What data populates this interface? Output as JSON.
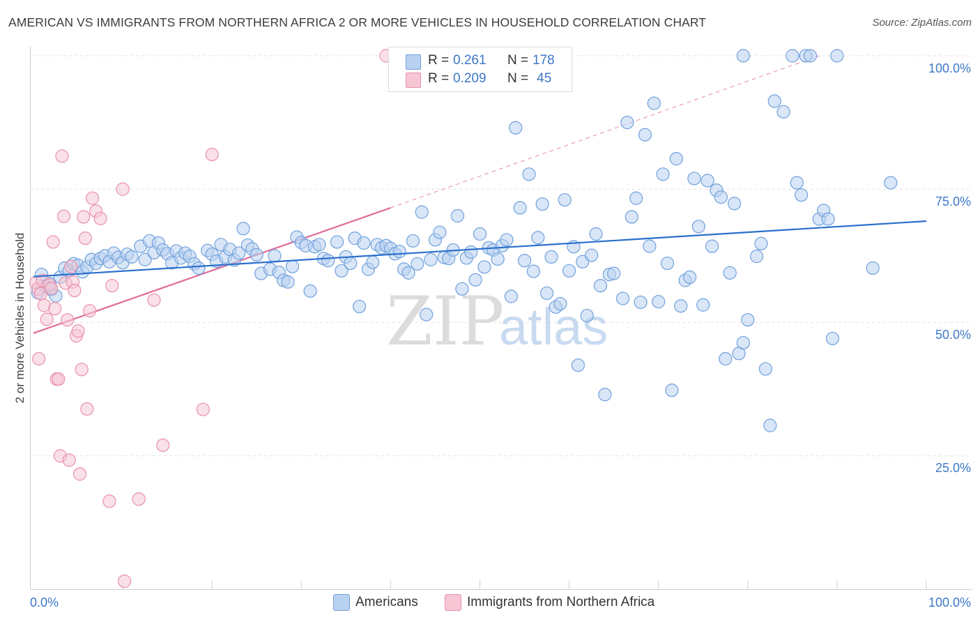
{
  "title": "AMERICAN VS IMMIGRANTS FROM NORTHERN AFRICA 2 OR MORE VEHICLES IN HOUSEHOLD CORRELATION CHART",
  "source": "Source: ZipAtlas.com",
  "watermark": {
    "zip": "ZIP",
    "atlas": "atlas"
  },
  "legend": {
    "r_label": "R =",
    "n_label": "N =",
    "americans": {
      "r": "0.261",
      "n": "178",
      "color": "#6fa0dc"
    },
    "immigrants": {
      "r": "0.209",
      "n": "45",
      "color": "#e890ac"
    }
  },
  "bottom_legend": {
    "americans": "Americans",
    "immigrants": "Immigrants from Northern Africa"
  },
  "colors": {
    "blue_fill": "#b9d1f0",
    "blue_stroke": "#6fa0dc",
    "blue_line": "#2a6fcc",
    "pink_fill": "#f6c6d5",
    "pink_stroke": "#e890ac",
    "pink_line": "#e06c98",
    "grid": "#e2e2e2",
    "axis_text": "#3c78c8"
  },
  "chart_data": {
    "type": "scatter",
    "title": "AMERICAN VS IMMIGRANTS FROM NORTHERN AFRICA 2 OR MORE VEHICLES IN HOUSEHOLD CORRELATION CHART",
    "xlabel": "",
    "ylabel": "2 or more Vehicles in Household",
    "xlim": [
      0,
      100
    ],
    "ylim": [
      0,
      100
    ],
    "x_tick_labels": [
      "0.0%",
      "100.0%"
    ],
    "y_tick_labels": [
      "25.0%",
      "50.0%",
      "75.0%",
      "100.0%"
    ],
    "y_ticks": [
      25,
      50,
      75,
      100
    ],
    "x_minor_ticks": [
      10,
      20,
      30,
      40,
      50,
      60,
      70,
      80,
      90,
      100
    ],
    "series": [
      {
        "name": "Americans",
        "r": 0.261,
        "n": 178,
        "trend": {
          "x0": 0,
          "y0": 58.6,
          "x1": 100,
          "y1": 69.0
        },
        "points": [
          [
            0.5,
            55.6
          ],
          [
            0.9,
            59.0
          ],
          [
            1.4,
            56.8
          ],
          [
            1.8,
            57.3
          ],
          [
            2.0,
            56.2
          ],
          [
            2.5,
            55.0
          ],
          [
            3.0,
            58.5
          ],
          [
            3.5,
            60.2
          ],
          [
            4.0,
            59.7
          ],
          [
            4.5,
            61.0
          ],
          [
            5.0,
            60.7
          ],
          [
            5.5,
            59.5
          ],
          [
            6.0,
            60.4
          ],
          [
            6.5,
            61.8
          ],
          [
            7.0,
            61.1
          ],
          [
            7.5,
            62.0
          ],
          [
            8.0,
            62.5
          ],
          [
            8.5,
            61.4
          ],
          [
            9.0,
            63.0
          ],
          [
            9.5,
            62.2
          ],
          [
            10.0,
            61.2
          ],
          [
            10.5,
            62.8
          ],
          [
            11.0,
            62.3
          ],
          [
            12.0,
            64.3
          ],
          [
            12.5,
            61.8
          ],
          [
            13.0,
            65.3
          ],
          [
            13.5,
            63.1
          ],
          [
            14.0,
            64.9
          ],
          [
            14.5,
            63.6
          ],
          [
            15.0,
            62.9
          ],
          [
            15.5,
            61.2
          ],
          [
            16.0,
            63.4
          ],
          [
            16.5,
            62.1
          ],
          [
            17.0,
            63.0
          ],
          [
            17.5,
            62.4
          ],
          [
            18.0,
            61.0
          ],
          [
            18.5,
            60.2
          ],
          [
            19.5,
            63.5
          ],
          [
            20.0,
            62.8
          ],
          [
            20.5,
            61.5
          ],
          [
            21.0,
            64.6
          ],
          [
            21.5,
            62.3
          ],
          [
            22.0,
            63.7
          ],
          [
            22.5,
            61.7
          ],
          [
            23.0,
            63.0
          ],
          [
            23.5,
            67.6
          ],
          [
            24.0,
            64.5
          ],
          [
            24.5,
            63.8
          ],
          [
            25.0,
            62.7
          ],
          [
            25.5,
            59.2
          ],
          [
            26.5,
            60.0
          ],
          [
            27.0,
            62.5
          ],
          [
            27.5,
            59.4
          ],
          [
            28.0,
            57.9
          ],
          [
            28.5,
            57.6
          ],
          [
            29.0,
            60.5
          ],
          [
            29.5,
            66.0
          ],
          [
            30.0,
            65.0
          ],
          [
            30.5,
            64.4
          ],
          [
            31.0,
            55.9
          ],
          [
            31.5,
            64.2
          ],
          [
            32.0,
            64.6
          ],
          [
            32.5,
            62.0
          ],
          [
            33.0,
            61.6
          ],
          [
            34.0,
            65.1
          ],
          [
            34.5,
            59.7
          ],
          [
            35.0,
            62.3
          ],
          [
            35.5,
            61.1
          ],
          [
            36.0,
            65.8
          ],
          [
            36.5,
            53.0
          ],
          [
            37.0,
            64.9
          ],
          [
            37.5,
            60.0
          ],
          [
            38.0,
            61.3
          ],
          [
            38.5,
            64.6
          ],
          [
            39.0,
            64.0
          ],
          [
            39.5,
            64.4
          ],
          [
            40.0,
            63.9
          ],
          [
            40.5,
            62.9
          ],
          [
            41.0,
            63.3
          ],
          [
            41.5,
            60.0
          ],
          [
            42.0,
            59.3
          ],
          [
            42.5,
            65.3
          ],
          [
            43.0,
            61.0
          ],
          [
            43.5,
            70.7
          ],
          [
            44.0,
            51.5
          ],
          [
            44.5,
            61.8
          ],
          [
            45.0,
            65.5
          ],
          [
            45.5,
            66.9
          ],
          [
            46.0,
            62.2
          ],
          [
            46.5,
            62.0
          ],
          [
            47.0,
            63.6
          ],
          [
            47.5,
            70.0
          ],
          [
            48.0,
            56.3
          ],
          [
            48.5,
            62.1
          ],
          [
            49.0,
            63.2
          ],
          [
            49.5,
            58.0
          ],
          [
            50.0,
            66.6
          ],
          [
            50.5,
            60.4
          ],
          [
            51.0,
            64.0
          ],
          [
            51.5,
            63.6
          ],
          [
            52.0,
            61.9
          ],
          [
            52.5,
            64.4
          ],
          [
            53.0,
            65.5
          ],
          [
            53.5,
            54.9
          ],
          [
            54.0,
            86.5
          ],
          [
            54.5,
            71.5
          ],
          [
            55.0,
            61.6
          ],
          [
            55.5,
            77.8
          ],
          [
            56.0,
            59.6
          ],
          [
            56.5,
            65.9
          ],
          [
            57.0,
            72.2
          ],
          [
            57.5,
            55.5
          ],
          [
            58.0,
            62.3
          ],
          [
            58.5,
            52.9
          ],
          [
            59.0,
            53.5
          ],
          [
            59.5,
            73.0
          ],
          [
            60.0,
            59.7
          ],
          [
            60.5,
            64.2
          ],
          [
            61.0,
            42.0
          ],
          [
            61.5,
            61.4
          ],
          [
            62.0,
            51.3
          ],
          [
            62.5,
            62.6
          ],
          [
            63.0,
            66.6
          ],
          [
            63.5,
            56.9
          ],
          [
            64.0,
            36.5
          ],
          [
            64.5,
            59.0
          ],
          [
            65.0,
            59.2
          ],
          [
            66.0,
            54.5
          ],
          [
            66.5,
            87.5
          ],
          [
            67.0,
            69.8
          ],
          [
            67.5,
            73.3
          ],
          [
            68.0,
            53.8
          ],
          [
            68.5,
            85.2
          ],
          [
            69.0,
            64.3
          ],
          [
            69.5,
            91.1
          ],
          [
            70.0,
            53.9
          ],
          [
            70.5,
            77.8
          ],
          [
            71.0,
            61.1
          ],
          [
            71.5,
            37.3
          ],
          [
            72.0,
            80.7
          ],
          [
            72.5,
            53.1
          ],
          [
            73.0,
            57.9
          ],
          [
            73.5,
            58.5
          ],
          [
            74.0,
            77.0
          ],
          [
            74.5,
            68.0
          ],
          [
            75.0,
            53.3
          ],
          [
            75.5,
            76.6
          ],
          [
            76.0,
            64.3
          ],
          [
            76.5,
            74.8
          ],
          [
            77.0,
            73.5
          ],
          [
            77.5,
            43.2
          ],
          [
            78.0,
            59.3
          ],
          [
            78.5,
            72.3
          ],
          [
            79.0,
            44.2
          ],
          [
            79.5,
            46.2
          ],
          [
            80.0,
            50.5
          ],
          [
            81.0,
            62.4
          ],
          [
            81.5,
            64.8
          ],
          [
            82.0,
            41.3
          ],
          [
            82.5,
            30.7
          ],
          [
            83.0,
            91.5
          ],
          [
            84.0,
            89.5
          ],
          [
            85.0,
            100.0
          ],
          [
            85.5,
            76.2
          ],
          [
            86.0,
            73.9
          ],
          [
            86.5,
            100.0
          ],
          [
            87.0,
            100.0
          ],
          [
            88.0,
            69.4
          ],
          [
            88.5,
            71.0
          ],
          [
            89.0,
            69.4
          ],
          [
            89.5,
            47.0
          ],
          [
            90.0,
            100.0
          ],
          [
            94.0,
            60.2
          ],
          [
            96.0,
            76.2
          ],
          [
            79.5,
            100.0
          ]
        ]
      },
      {
        "name": "Immigrants from Northern Africa",
        "r": 0.209,
        "n": 45,
        "trend": {
          "x0": 0,
          "y0": 48.0,
          "x1": 40,
          "y1": 71.5
        },
        "trend_extension": {
          "x0": 40,
          "y0": 71.5,
          "x1": 88,
          "y1": 100.0
        },
        "points": [
          [
            0.3,
            57.5
          ],
          [
            0.5,
            56.3
          ],
          [
            0.6,
            43.2
          ],
          [
            0.8,
            55.4
          ],
          [
            1.0,
            57.9
          ],
          [
            1.2,
            53.2
          ],
          [
            1.5,
            50.6
          ],
          [
            1.8,
            57.0
          ],
          [
            2.0,
            56.4
          ],
          [
            2.2,
            65.1
          ],
          [
            2.4,
            52.6
          ],
          [
            2.6,
            39.4
          ],
          [
            2.8,
            39.4
          ],
          [
            3.0,
            25.0
          ],
          [
            3.2,
            81.2
          ],
          [
            3.4,
            69.9
          ],
          [
            3.6,
            57.4
          ],
          [
            3.8,
            50.5
          ],
          [
            4.0,
            24.2
          ],
          [
            4.2,
            60.5
          ],
          [
            4.4,
            57.6
          ],
          [
            4.6,
            56.0
          ],
          [
            4.8,
            47.5
          ],
          [
            5.0,
            48.4
          ],
          [
            5.2,
            21.6
          ],
          [
            5.4,
            41.2
          ],
          [
            5.6,
            69.8
          ],
          [
            5.8,
            65.8
          ],
          [
            6.0,
            33.8
          ],
          [
            6.3,
            52.2
          ],
          [
            6.6,
            73.3
          ],
          [
            7.0,
            70.9
          ],
          [
            7.5,
            69.5
          ],
          [
            8.5,
            16.5
          ],
          [
            8.8,
            56.9
          ],
          [
            10.0,
            75.0
          ],
          [
            10.2,
            1.5
          ],
          [
            11.8,
            16.9
          ],
          [
            13.5,
            54.2
          ],
          [
            14.5,
            27.0
          ],
          [
            19.0,
            33.7
          ],
          [
            20.0,
            81.5
          ],
          [
            39.5,
            100.0
          ]
        ]
      }
    ]
  }
}
